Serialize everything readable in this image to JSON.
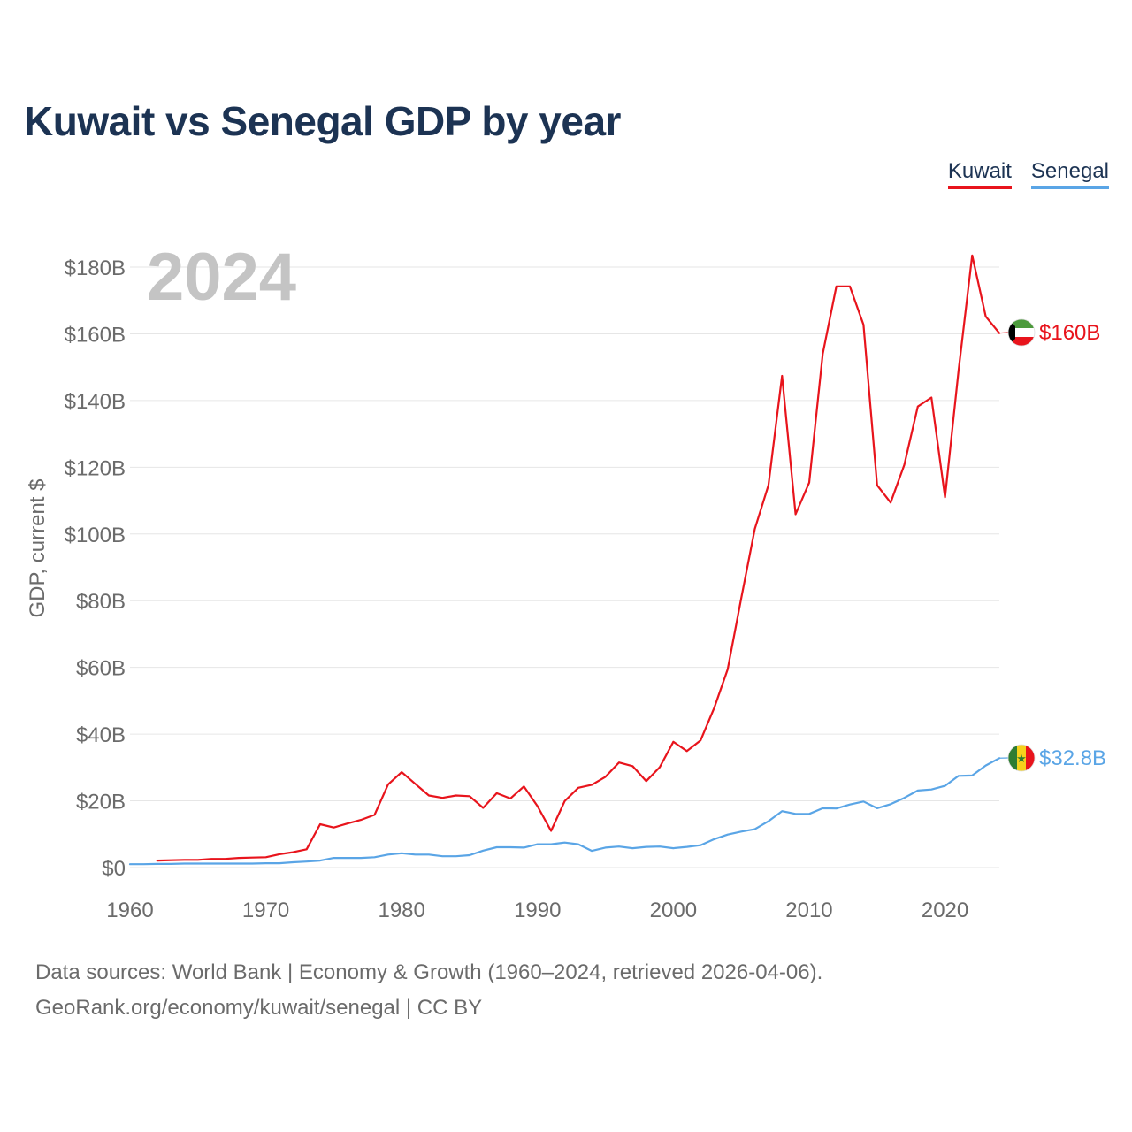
{
  "title": "Kuwait vs Senegal GDP by year",
  "year_label": "2024",
  "footer": {
    "line1": "Data sources: World Bank | Economy & Growth (1960–2024, retrieved 2026-04-06).",
    "line2": "GeoRank.org/economy/kuwait/senegal | CC BY"
  },
  "chart_data": {
    "type": "line",
    "title": "Kuwait vs Senegal GDP by year",
    "xlabel": "",
    "ylabel": "GDP, current $",
    "xlim": [
      1960,
      2024
    ],
    "ylim": [
      0,
      180
    ],
    "y_unit": "billions USD",
    "x_ticks": [
      1960,
      1970,
      1980,
      1990,
      2000,
      2010,
      2020
    ],
    "x_tick_labels": [
      "1960",
      "1970",
      "1980",
      "1990",
      "2000",
      "2010",
      "2020"
    ],
    "y_ticks": [
      0,
      20,
      40,
      60,
      80,
      100,
      120,
      140,
      160,
      180
    ],
    "y_tick_labels": [
      "$0",
      "$20B",
      "$40B",
      "$60B",
      "$80B",
      "$100B",
      "$120B",
      "$140B",
      "$160B",
      "$180B"
    ],
    "grid": true,
    "legend_position": "top-right",
    "series": [
      {
        "name": "Kuwait",
        "color": "#e8141c",
        "end_label": "$160B",
        "flag": "kuwait",
        "x": [
          1962,
          1963,
          1964,
          1965,
          1966,
          1967,
          1968,
          1969,
          1970,
          1971,
          1972,
          1973,
          1974,
          1975,
          1976,
          1977,
          1978,
          1979,
          1980,
          1981,
          1982,
          1983,
          1984,
          1985,
          1986,
          1987,
          1988,
          1989,
          1990,
          1991,
          1992,
          1993,
          1994,
          1995,
          1996,
          1997,
          1998,
          1999,
          2000,
          2001,
          2002,
          2003,
          2004,
          2005,
          2006,
          2007,
          2008,
          2009,
          2010,
          2011,
          2012,
          2013,
          2014,
          2015,
          2016,
          2017,
          2018,
          2019,
          2020,
          2021,
          2022,
          2023,
          2024
        ],
        "values": [
          2.1,
          2.2,
          2.3,
          2.3,
          2.6,
          2.6,
          2.9,
          3.0,
          3.1,
          4.0,
          4.6,
          5.5,
          13.0,
          12.0,
          13.2,
          14.3,
          15.8,
          24.9,
          28.6,
          25.1,
          21.6,
          20.9,
          21.6,
          21.4,
          17.9,
          22.3,
          20.7,
          24.3,
          18.4,
          11.0,
          19.9,
          23.9,
          24.8,
          27.2,
          31.5,
          30.4,
          25.9,
          30.1,
          37.7,
          34.9,
          38.1,
          47.8,
          59.4,
          80.8,
          101.5,
          114.6,
          147.4,
          105.9,
          115.4,
          154.0,
          174.2,
          174.2,
          162.7,
          114.6,
          109.4,
          120.7,
          138.2,
          140.9,
          111.0,
          149.0,
          183.5,
          165.2,
          160.2
        ]
      },
      {
        "name": "Senegal",
        "color": "#5aa5e6",
        "end_label": "$32.8B",
        "flag": "senegal",
        "x": [
          1960,
          1961,
          1962,
          1963,
          1964,
          1965,
          1966,
          1967,
          1968,
          1969,
          1970,
          1971,
          1972,
          1973,
          1974,
          1975,
          1976,
          1977,
          1978,
          1979,
          1980,
          1981,
          1982,
          1983,
          1984,
          1985,
          1986,
          1987,
          1988,
          1989,
          1990,
          1991,
          1992,
          1993,
          1994,
          1995,
          1996,
          1997,
          1998,
          1999,
          2000,
          2001,
          2002,
          2003,
          2004,
          2005,
          2006,
          2007,
          2008,
          2009,
          2010,
          2011,
          2012,
          2013,
          2014,
          2015,
          2016,
          2017,
          2018,
          2019,
          2020,
          2021,
          2022,
          2023,
          2024
        ],
        "values": [
          1.0,
          1.0,
          1.1,
          1.1,
          1.2,
          1.2,
          1.2,
          1.2,
          1.2,
          1.2,
          1.3,
          1.3,
          1.6,
          1.8,
          2.1,
          2.9,
          2.9,
          2.9,
          3.1,
          3.9,
          4.3,
          3.9,
          3.9,
          3.4,
          3.4,
          3.7,
          5.1,
          6.1,
          6.1,
          6.0,
          7.0,
          7.0,
          7.5,
          7.0,
          5.0,
          6.0,
          6.3,
          5.8,
          6.2,
          6.3,
          5.8,
          6.2,
          6.7,
          8.5,
          9.9,
          10.8,
          11.5,
          13.9,
          16.9,
          16.1,
          16.1,
          17.8,
          17.7,
          18.9,
          19.8,
          17.8,
          19.0,
          20.9,
          23.1,
          23.4,
          24.5,
          27.5,
          27.6,
          30.6,
          32.8
        ]
      }
    ]
  }
}
